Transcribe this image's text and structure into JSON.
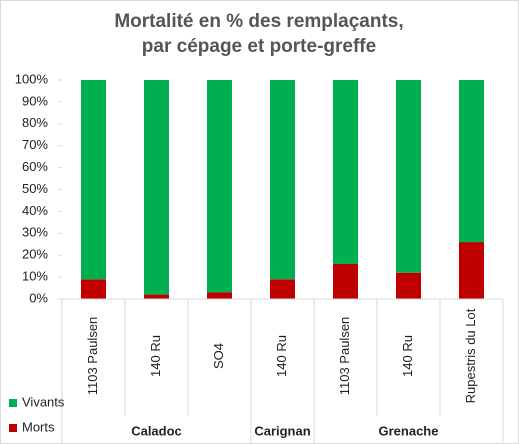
{
  "chart_data": {
    "type": "bar",
    "stacked": true,
    "title": [
      "Mortalité en % des  remplaçants,",
      "par cépage et porte-greffe"
    ],
    "groups": [
      {
        "name": "Caladoc",
        "categories": [
          "1103 Paulsen",
          "140 Ru",
          "SO4"
        ]
      },
      {
        "name": "Carignan",
        "categories": [
          "140 Ru"
        ]
      },
      {
        "name": "Grenache",
        "categories": [
          "1103 Paulsen",
          "140 Ru",
          "Rupestris du Lot"
        ]
      }
    ],
    "series": [
      {
        "name": "Morts",
        "color": "#c00000",
        "values": [
          9,
          2,
          3,
          9,
          16,
          12,
          26
        ]
      },
      {
        "name": "Vivants",
        "color": "#00b050",
        "values": [
          91,
          98,
          97,
          91,
          84,
          88,
          74
        ]
      }
    ],
    "ylim": [
      0,
      100
    ],
    "yticks": [
      {
        "value": 0,
        "label": "0%"
      },
      {
        "value": 10,
        "label": "10%"
      },
      {
        "value": 20,
        "label": "20%"
      },
      {
        "value": 30,
        "label": "30%"
      },
      {
        "value": 40,
        "label": "40%"
      },
      {
        "value": 50,
        "label": "50%"
      },
      {
        "value": 60,
        "label": "60%"
      },
      {
        "value": 70,
        "label": "70%"
      },
      {
        "value": 80,
        "label": "80%"
      },
      {
        "value": 90,
        "label": "90%"
      },
      {
        "value": 100,
        "label": "100%"
      }
    ],
    "legend": "bottom-left"
  }
}
